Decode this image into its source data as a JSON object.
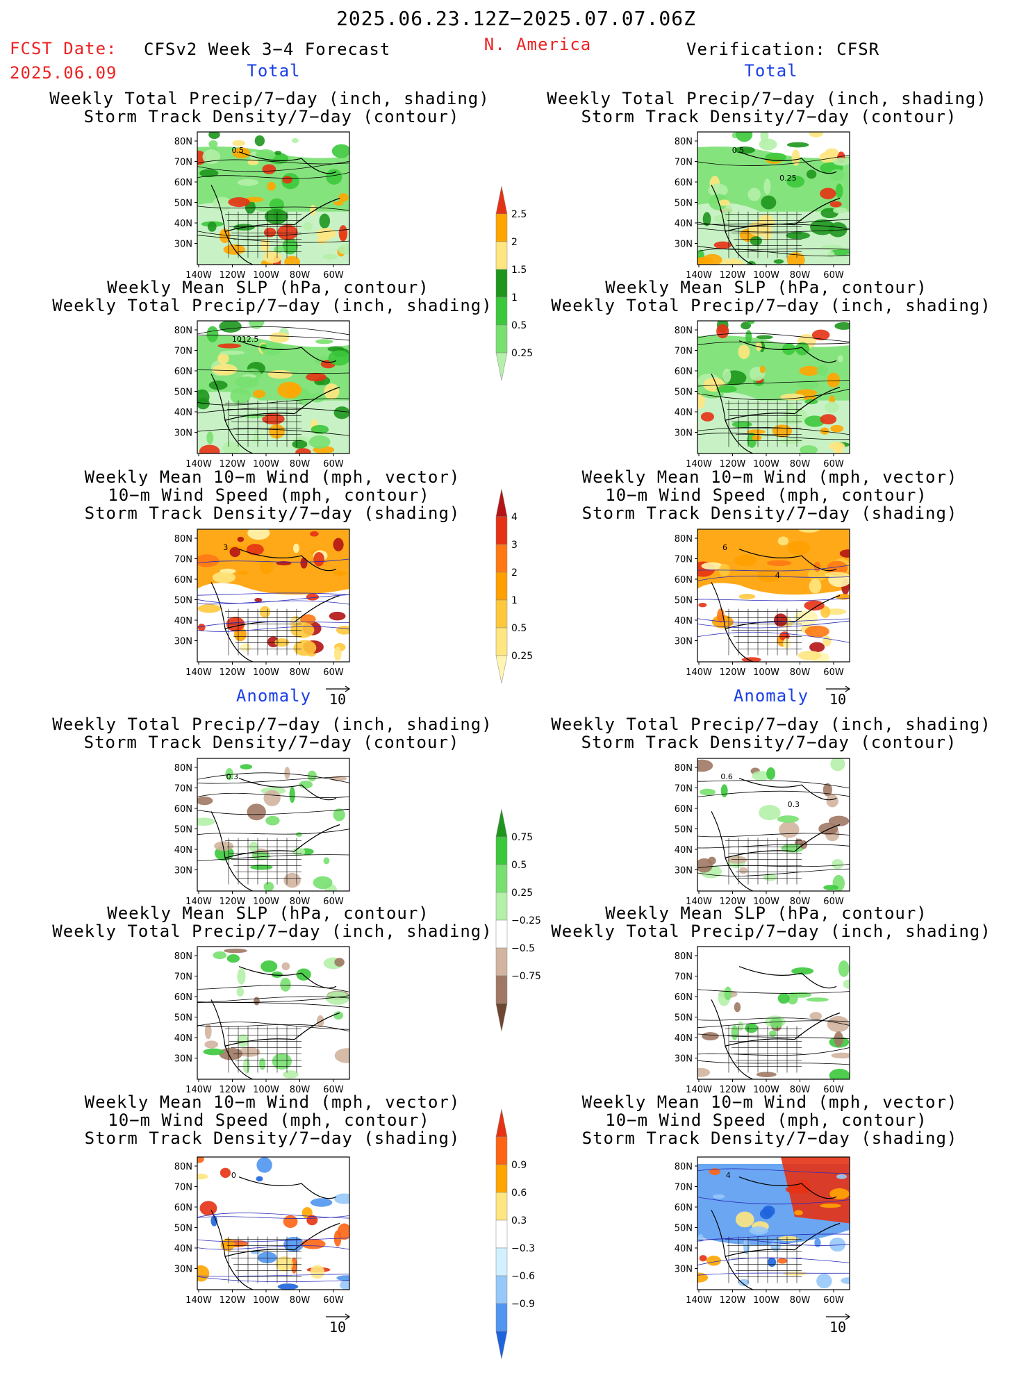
{
  "header": {
    "date_range": "2025.06.23.12Z−2025.07.07.06Z",
    "fcst_date_label": "FCST Date:",
    "fcst_date_value": "2025.06.09",
    "forecast_title": "CFSv2 Week 3−4 Forecast",
    "region": "N. America",
    "verification": "Verification: CFSR"
  },
  "sections": {
    "total": "Total",
    "anomaly": "Anomaly"
  },
  "titles": {
    "precip_storm": [
      "Weekly Total Precip/7−day (inch, shading)",
      "Storm Track Density/7−day (contour)"
    ],
    "slp_precip": [
      "Weekly Mean SLP (hPa, contour)",
      "Weekly Total Precip/7−day (inch, shading)"
    ],
    "wind_storm": [
      "Weekly Mean 10−m Wind (mph, vector)",
      "10−m Wind Speed (mph, contour)",
      "Storm Track Density/7−day (shading)"
    ]
  },
  "axes": {
    "lat_ticks": [
      "80N",
      "70N",
      "60N",
      "50N",
      "40N",
      "30N"
    ],
    "lon_ticks": [
      "140W",
      "120W",
      "100W",
      "80W",
      "60W"
    ]
  },
  "vector_reference": "10",
  "colorbars": {
    "precip_total": {
      "levels": [
        "0.25",
        "0.5",
        "1",
        "1.5",
        "2",
        "2.5"
      ],
      "colors": [
        "#b4f0a8",
        "#78e070",
        "#3cc83c",
        "#1e961e",
        "#ffe680",
        "#ffa500",
        "#e63214"
      ]
    },
    "storm_total": {
      "levels": [
        "0.25",
        "0.5",
        "1",
        "2",
        "3",
        "4"
      ],
      "colors": [
        "#fff5b0",
        "#ffe680",
        "#ffc83c",
        "#ffa000",
        "#ff7814",
        "#e63214",
        "#b41414"
      ]
    },
    "precip_anom": {
      "levels": [
        "−0.75",
        "−0.5",
        "−0.25",
        "0.25",
        "0.5",
        "0.75"
      ],
      "colors": [
        "#6e4632",
        "#a07864",
        "#d2b4a0",
        "#ffffff",
        "#b4f0a8",
        "#78e070",
        "#3cc83c",
        "#1e961e"
      ]
    },
    "storm_anom": {
      "levels": [
        "−0.9",
        "−0.6",
        "−0.3",
        "0.3",
        "0.6",
        "0.9"
      ],
      "colors": [
        "#1e64dc",
        "#5096f0",
        "#96c8fa",
        "#d2f0ff",
        "#ffffff",
        "#ffe680",
        "#ffa500",
        "#ff6414",
        "#e63214"
      ]
    }
  },
  "panels": [
    {
      "id": "fcst-total-precip-storm",
      "column": "forecast",
      "field": "precip_total",
      "labels": [
        "0.5"
      ]
    },
    {
      "id": "verif-total-precip-storm",
      "column": "verification",
      "field": "precip_total",
      "labels": [
        "0.5",
        "0.25"
      ]
    },
    {
      "id": "fcst-total-slp-precip",
      "column": "forecast",
      "field": "precip_total",
      "labels": [
        "1012.5"
      ]
    },
    {
      "id": "verif-total-slp-precip",
      "column": "verification",
      "field": "precip_total",
      "labels": []
    },
    {
      "id": "fcst-total-wind-storm",
      "column": "forecast",
      "field": "storm_total",
      "labels": [
        "3"
      ]
    },
    {
      "id": "verif-total-wind-storm",
      "column": "verification",
      "field": "storm_total",
      "labels": [
        "6",
        "4"
      ]
    },
    {
      "id": "fcst-anom-precip-storm",
      "column": "forecast",
      "field": "precip_anom",
      "labels": [
        "0.3"
      ]
    },
    {
      "id": "verif-anom-precip-storm",
      "column": "verification",
      "field": "precip_anom",
      "labels": [
        "0.6",
        "0.3"
      ]
    },
    {
      "id": "fcst-anom-slp-precip",
      "column": "forecast",
      "field": "precip_anom",
      "labels": []
    },
    {
      "id": "verif-anom-slp-precip",
      "column": "verification",
      "field": "precip_anom",
      "labels": []
    },
    {
      "id": "fcst-anom-wind-storm",
      "column": "forecast",
      "field": "storm_anom",
      "labels": [
        "0"
      ]
    },
    {
      "id": "verif-anom-wind-storm",
      "column": "verification",
      "field": "storm_anom",
      "labels": [
        "4"
      ]
    }
  ],
  "chart_data": {
    "type": "heatmap",
    "title": "CFSv2 Week 3−4 Forecast",
    "x_ticks": [
      "140W",
      "120W",
      "100W",
      "80W",
      "60W"
    ],
    "y_ticks": [
      "80N",
      "70N",
      "60N",
      "50N",
      "40N",
      "30N"
    ],
    "grid": false,
    "legend_placement": "center"
  }
}
